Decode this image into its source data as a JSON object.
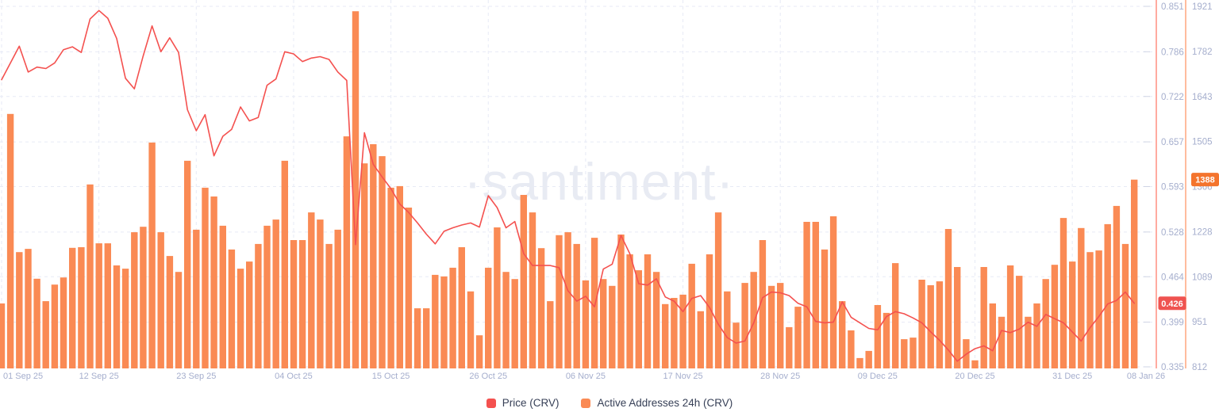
{
  "watermark": "·santiment·",
  "palette": {
    "price_line": "#f4514f",
    "price_badge_bg": "#ef5350",
    "bars": "#fa8a54",
    "addr_badge_bg": "#f4742d",
    "price_axis_line": "#ffaba0",
    "addr_axis_line": "#ffbc9e",
    "tick_dash": "#cfd4e4",
    "watermark_color": "#e8ebf3"
  },
  "legend": [
    {
      "label": "Price (CRV)",
      "color": "#f4514f"
    },
    {
      "label": "Active Addresses 24h (CRV)",
      "color": "#fa8a54"
    }
  ],
  "chart_data": {
    "type": "mixed bar+line, dual y-axis, daily from 01 Sep 25 to 08 Jan 26",
    "x_ticks": [
      {
        "index": 0,
        "label": "01 Sep 25"
      },
      {
        "index": 11,
        "label": "12 Sep 25"
      },
      {
        "index": 22,
        "label": "23 Sep 25"
      },
      {
        "index": 33,
        "label": "04 Oct 25"
      },
      {
        "index": 44,
        "label": "15 Oct 25"
      },
      {
        "index": 55,
        "label": "26 Oct 25"
      },
      {
        "index": 66,
        "label": "06 Nov 25"
      },
      {
        "index": 77,
        "label": "17 Nov 25"
      },
      {
        "index": 88,
        "label": "28 Nov 25"
      },
      {
        "index": 99,
        "label": "09 Dec 25"
      },
      {
        "index": 110,
        "label": "20 Dec 25"
      },
      {
        "index": 121,
        "label": "31 Dec 25"
      },
      {
        "index": 128,
        "label": "08 Jan 26"
      }
    ],
    "price_axis": {
      "min": 0.335,
      "max": 0.851,
      "ticks": [
        "0.851",
        "0.786",
        "0.722",
        "0.657",
        "0.593",
        "0.528",
        "0.464",
        "0.399",
        "0.335"
      ],
      "current": "0.426"
    },
    "addresses_axis": {
      "min": 812,
      "max": 1921,
      "ticks": [
        "1921",
        "1782",
        "1643",
        "1505",
        "1366",
        "1228",
        "1089",
        "951",
        "812"
      ],
      "current": "1388"
    },
    "series": [
      {
        "name": "Price (CRV)",
        "type": "line",
        "color": "#f4514f",
        "values": [
          0.746,
          0.77,
          0.794,
          0.757,
          0.764,
          0.762,
          0.77,
          0.789,
          0.793,
          0.785,
          0.833,
          0.845,
          0.834,
          0.805,
          0.748,
          0.733,
          0.78,
          0.823,
          0.786,
          0.806,
          0.785,
          0.703,
          0.673,
          0.696,
          0.637,
          0.665,
          0.675,
          0.707,
          0.687,
          0.692,
          0.738,
          0.747,
          0.786,
          0.783,
          0.772,
          0.777,
          0.779,
          0.775,
          0.757,
          0.745,
          0.51,
          0.67,
          0.625,
          0.607,
          0.59,
          0.568,
          0.556,
          0.541,
          0.525,
          0.511,
          0.529,
          0.534,
          0.538,
          0.541,
          0.535,
          0.58,
          0.563,
          0.534,
          0.543,
          0.497,
          0.48,
          0.48,
          0.48,
          0.477,
          0.444,
          0.429,
          0.436,
          0.421,
          0.475,
          0.482,
          0.523,
          0.497,
          0.454,
          0.452,
          0.461,
          0.435,
          0.429,
          0.414,
          0.433,
          0.437,
          0.42,
          0.396,
          0.377,
          0.369,
          0.372,
          0.398,
          0.434,
          0.442,
          0.441,
          0.437,
          0.426,
          0.421,
          0.4,
          0.398,
          0.399,
          0.428,
          0.406,
          0.398,
          0.39,
          0.388,
          0.407,
          0.414,
          0.411,
          0.405,
          0.398,
          0.385,
          0.373,
          0.359,
          0.343,
          0.353,
          0.361,
          0.365,
          0.358,
          0.387,
          0.384,
          0.389,
          0.399,
          0.393,
          0.41,
          0.404,
          0.398,
          0.385,
          0.372,
          0.391,
          0.407,
          0.425,
          0.43,
          0.442,
          0.426
        ]
      },
      {
        "name": "Active Addresses 24h (CRV)",
        "type": "bar",
        "color": "#fa8a54",
        "values": [
          1007,
          1590,
          1165,
          1175,
          1083,
          1014,
          1065,
          1087,
          1178,
          1180,
          1373,
          1192,
          1192,
          1124,
          1114,
          1226,
          1243,
          1502,
          1226,
          1153,
          1104,
          1446,
          1234,
          1363,
          1336,
          1246,
          1173,
          1114,
          1136,
          1190,
          1246,
          1265,
          1446,
          1202,
          1202,
          1287,
          1265,
          1190,
          1234,
          1521,
          1906,
          1438,
          1497,
          1460,
          1363,
          1368,
          1302,
          992,
          992,
          1095,
          1090,
          1117,
          1180,
          1044,
          909,
          1117,
          1241,
          1104,
          1082,
          1341,
          1287,
          1177,
          1014,
          1217,
          1226,
          1190,
          1078,
          1209,
          1082,
          1061,
          1219,
          1158,
          1109,
          1158,
          1104,
          1005,
          1024,
          1034,
          1129,
          983,
          1158,
          1287,
          1044,
          948,
          1070,
          1104,
          1202,
          1061,
          1070,
          934,
          997,
          1258,
          1258,
          1173,
          1275,
          1014,
          924,
          839,
          861,
          1002,
          978,
          1131,
          897,
          902,
          1080,
          1063,
          1075,
          1236,
          1119,
          897,
          832,
          1119,
          1007,
          966,
          1124,
          1092,
          966,
          1007,
          1082,
          1126,
          1270,
          1136,
          1239,
          1165,
          1170,
          1251,
          1307,
          1190,
          1388
        ]
      }
    ],
    "legend_position": "bottom-center",
    "grid": "dashed horizontal+vertical"
  }
}
